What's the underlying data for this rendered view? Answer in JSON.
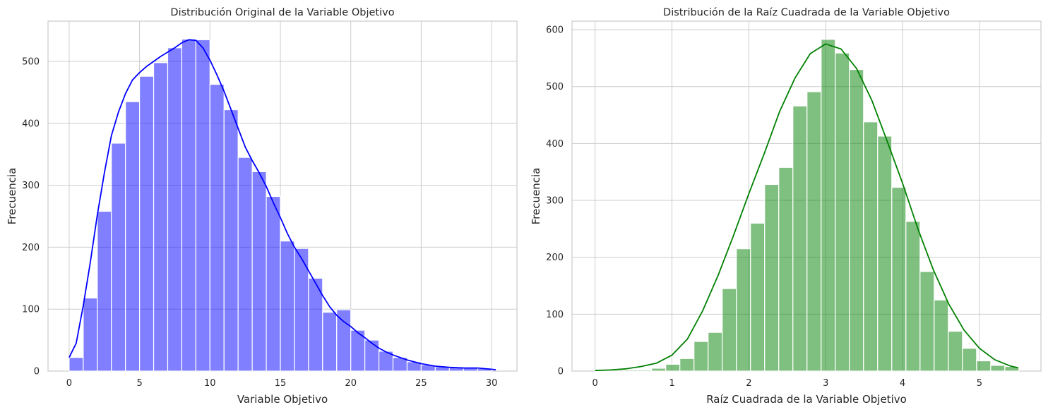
{
  "chart_data": [
    {
      "type": "bar",
      "title": "Distribución Original de la Variable Objetivo",
      "xlabel": "Variable Objetivo",
      "ylabel": "Frecuencia",
      "xlim": [
        -1.5,
        31.8
      ],
      "ylim": [
        0,
        565
      ],
      "xticks": [
        0,
        5,
        10,
        15,
        20,
        25,
        30
      ],
      "yticks": [
        0,
        100,
        200,
        300,
        400,
        500
      ],
      "grid": true,
      "bar_color": "#0000ff",
      "bar_opacity": 0.5,
      "kde_color": "#0000ff",
      "bins": {
        "start": 0.0,
        "width": 1.0,
        "values": [
          22,
          118,
          258,
          368,
          435,
          476,
          498,
          522,
          536,
          535,
          463,
          422,
          345,
          322,
          282,
          210,
          198,
          150,
          95,
          99,
          66,
          50,
          32,
          22,
          15,
          10,
          7,
          7,
          6,
          4
        ]
      },
      "kde": {
        "x": [
          0.0,
          0.5,
          1.0,
          1.5,
          2.0,
          2.5,
          3.0,
          3.5,
          4.0,
          4.5,
          5.0,
          5.5,
          6.0,
          6.5,
          7.0,
          7.5,
          8.0,
          8.5,
          9.0,
          9.5,
          10.0,
          10.5,
          11.0,
          11.5,
          12.0,
          12.5,
          13.0,
          13.5,
          14.0,
          14.5,
          15.0,
          15.5,
          16.0,
          16.5,
          17.0,
          17.5,
          18.0,
          18.5,
          19.0,
          19.5,
          20.0,
          20.5,
          21.0,
          21.5,
          22.0,
          22.5,
          23.0,
          24.0,
          25.0,
          26.0,
          27.0,
          28.0,
          29.0,
          30.0,
          30.3
        ],
        "y": [
          22,
          45,
          105,
          175,
          252,
          320,
          380,
          418,
          448,
          470,
          482,
          492,
          500,
          508,
          515,
          522,
          530,
          535,
          534,
          522,
          502,
          478,
          452,
          422,
          392,
          362,
          340,
          320,
          298,
          272,
          248,
          222,
          200,
          182,
          162,
          142,
          122,
          104,
          90,
          80,
          72,
          62,
          54,
          45,
          37,
          31,
          26,
          18,
          12,
          8,
          6,
          5,
          5,
          3,
          2
        ]
      }
    },
    {
      "type": "bar",
      "title": "Distribución de la Raíz Cuadrada de la Variable Objetivo",
      "xlabel": "Raíz Cuadrada de la Variable Objetivo",
      "ylabel": "Frecuencia",
      "xlim": [
        -0.3,
        5.8
      ],
      "ylim": [
        0,
        615
      ],
      "xticks": [
        0,
        1,
        2,
        3,
        4,
        5
      ],
      "yticks": [
        0,
        100,
        200,
        300,
        400,
        500,
        600
      ],
      "grid": true,
      "bar_color": "#008000",
      "bar_opacity": 0.5,
      "kde_color": "#008000",
      "bins": {
        "start": 0.0,
        "width": 0.1838,
        "values": [
          2,
          2,
          2,
          2,
          5,
          12,
          22,
          52,
          68,
          145,
          215,
          260,
          328,
          358,
          466,
          491,
          583,
          559,
          530,
          438,
          413,
          323,
          263,
          175,
          125,
          70,
          40,
          18,
          10,
          8
        ]
      },
      "kde": {
        "x": [
          0.0,
          0.2,
          0.4,
          0.6,
          0.8,
          1.0,
          1.2,
          1.4,
          1.6,
          1.8,
          2.0,
          2.2,
          2.4,
          2.6,
          2.8,
          3.0,
          3.2,
          3.4,
          3.6,
          3.8,
          4.0,
          4.2,
          4.4,
          4.6,
          4.8,
          5.0,
          5.2,
          5.4,
          5.5
        ],
        "y": [
          1,
          2,
          4,
          8,
          14,
          28,
          56,
          106,
          168,
          238,
          312,
          382,
          456,
          515,
          558,
          575,
          566,
          532,
          476,
          404,
          330,
          250,
          178,
          118,
          72,
          40,
          20,
          9,
          6
        ]
      }
    }
  ]
}
